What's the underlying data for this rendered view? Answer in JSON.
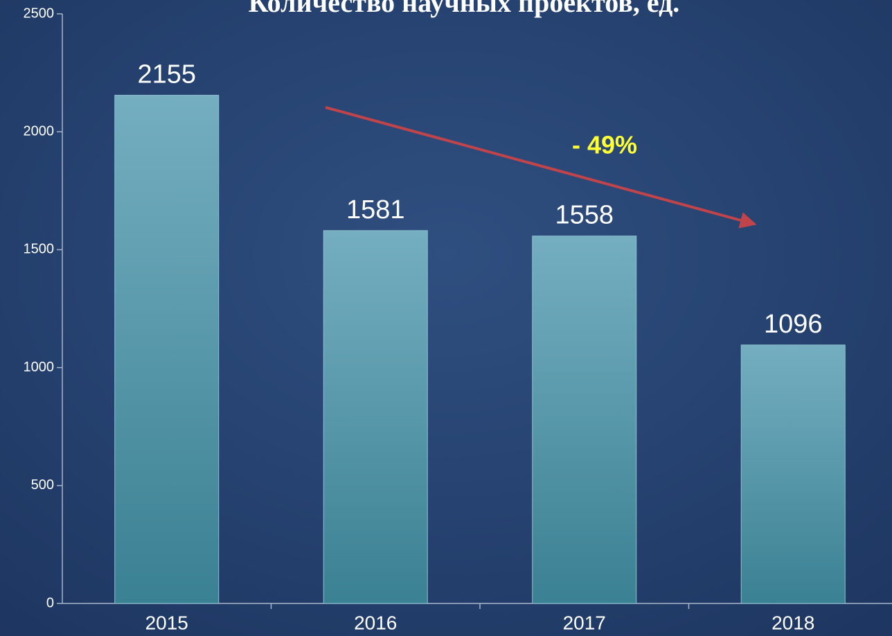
{
  "chart_data": {
    "type": "bar",
    "title": "Количество научных проектов, ед.",
    "categories": [
      "2015",
      "2016",
      "2017",
      "2018"
    ],
    "values": [
      2155,
      1581,
      1558,
      1096
    ],
    "ylim": [
      0,
      2500
    ],
    "yticks": [
      0,
      500,
      1000,
      1500,
      2000,
      2500
    ],
    "annotation": "- 49%"
  }
}
